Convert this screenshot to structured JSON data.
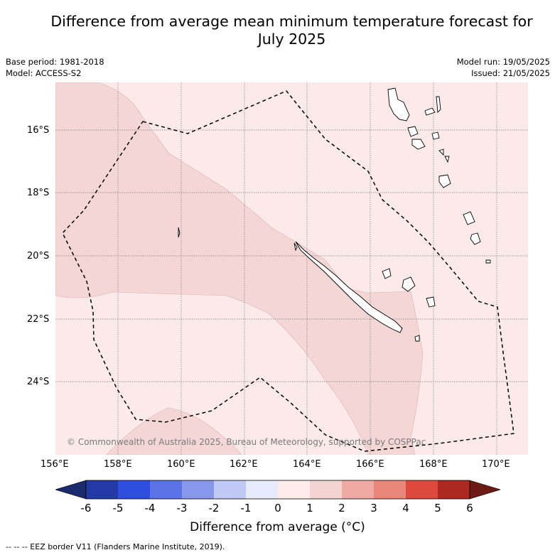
{
  "header": {
    "title_line1": "Difference from average mean minimum temperature forecast for",
    "title_line2": "July 2025",
    "base_period": "Base period: 1981-2018",
    "model": "Model: ACCESS-S2",
    "model_run": "Model run: 19/05/2025",
    "issued": "Issued: 21/05/2025"
  },
  "map": {
    "copyright": "© Commonwealth of Australia 2025, Bureau of Meteorology, supported by COSPPac",
    "lon_labels": [
      "156°E",
      "158°E",
      "160°E",
      "162°E",
      "164°E",
      "166°E",
      "168°E",
      "170°E"
    ],
    "lat_labels": [
      "16°S",
      "18°S",
      "20°S",
      "22°S",
      "24°S"
    ],
    "fill_light": "#fbeae9",
    "fill_medium": "#f4d6d6",
    "border_color": "#000000",
    "gridline_color": "#666666"
  },
  "colorbar": {
    "ticks": [
      "-6",
      "-5",
      "-4",
      "-3",
      "-2",
      "-1",
      "0",
      "1",
      "2",
      "3",
      "4",
      "5",
      "6"
    ],
    "under_color": "#1b2a6b",
    "over_color": "#6e1a14",
    "colors": [
      "#233aa6",
      "#2f4ee0",
      "#5a72e6",
      "#8797ec",
      "#c0c8f5",
      "#e7ebfb",
      "#fdece9",
      "#f4d4d2",
      "#efaaa3",
      "#e8867a",
      "#dc4a3d",
      "#ac2820"
    ],
    "label": "Difference from average (°C)"
  },
  "legend": {
    "eez_text": "--  --  -- EEZ border V11 (Flanders Marine Institute, 2019)."
  }
}
